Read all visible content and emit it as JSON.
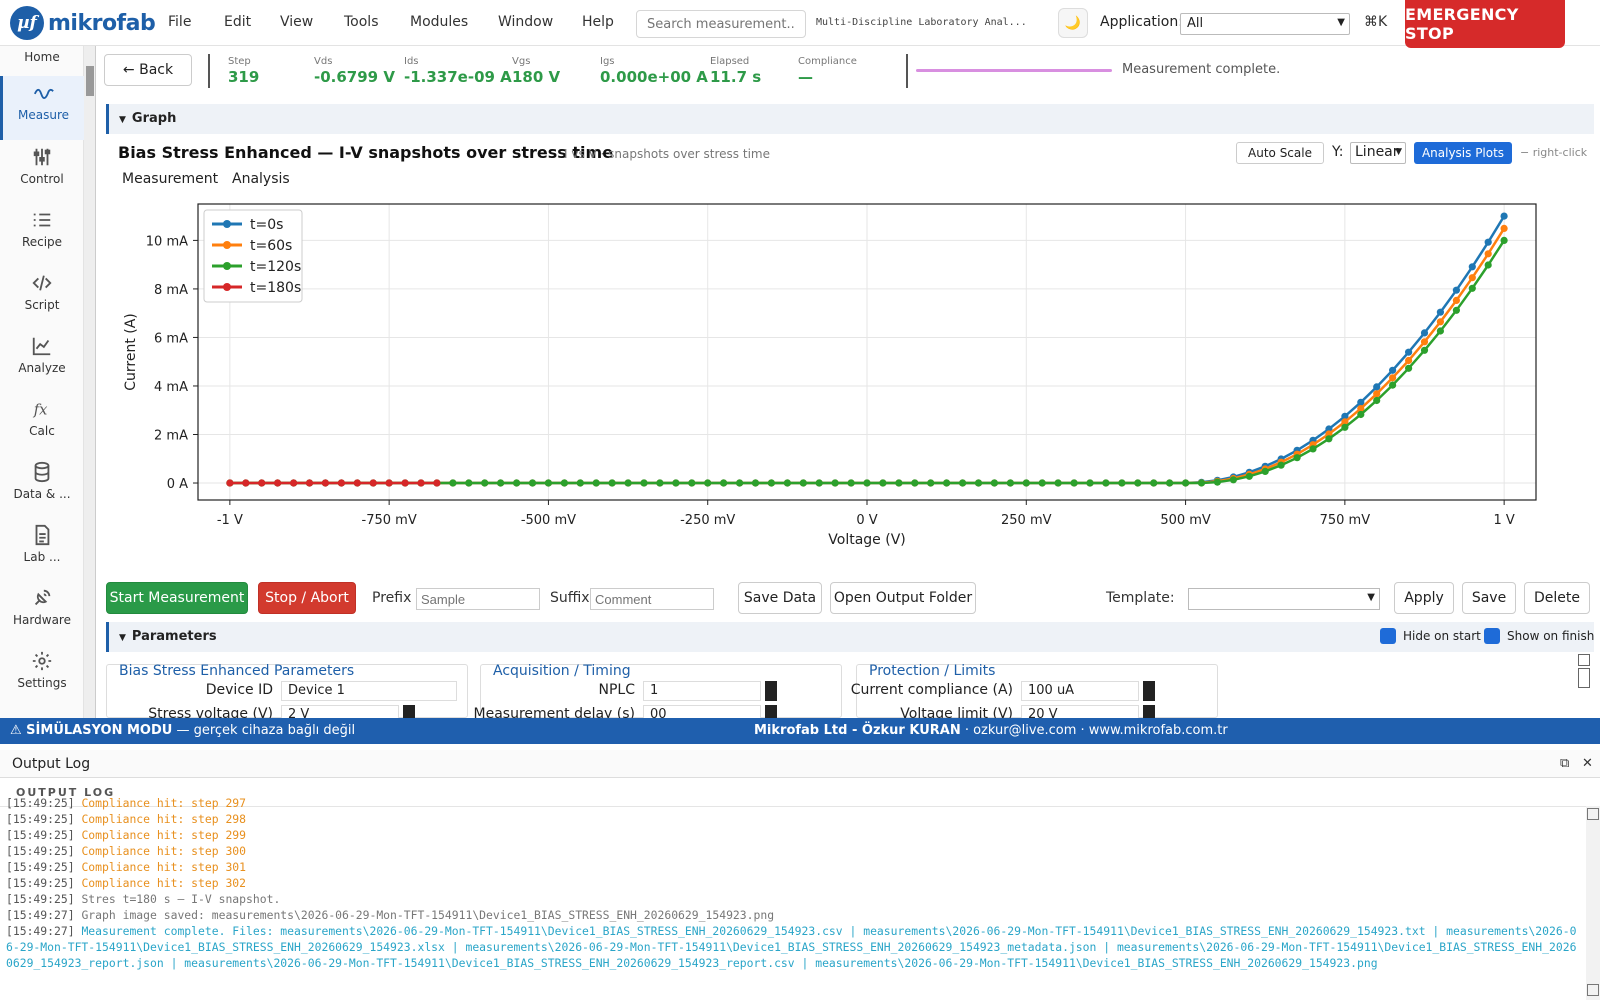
{
  "menubar": {
    "logo_mark": "µf",
    "logo_text": "mikrofab",
    "menus": [
      "File",
      "Edit",
      "View",
      "Tools",
      "Modules",
      "Window",
      "Help"
    ],
    "search_placeholder": "Search measurement...",
    "app_title": "Multi-Discipline Laboratory Anal...",
    "theme_icon": "moon-icon",
    "application_label": "Application:",
    "application_value": "All",
    "shortcut": "⌘K",
    "emergency_label": "EMERGENCY STOP"
  },
  "sidebar": {
    "items": [
      {
        "label": "Home",
        "icon": "home-icon"
      },
      {
        "label": "Measure",
        "icon": "wave-icon"
      },
      {
        "label": "Control",
        "icon": "sliders-icon"
      },
      {
        "label": "Recipe",
        "icon": "list-icon"
      },
      {
        "label": "Script",
        "icon": "code-icon"
      },
      {
        "label": "Analyze",
        "icon": "chart-icon"
      },
      {
        "label": "Calc",
        "icon": "function-icon"
      },
      {
        "label": "Data & ...",
        "icon": "database-icon"
      },
      {
        "label": "Lab ...",
        "icon": "document-icon"
      },
      {
        "label": "Hardware",
        "icon": "satellite-icon"
      },
      {
        "label": "Settings",
        "icon": "gear-icon"
      }
    ]
  },
  "status": {
    "back_label": "← Back",
    "stats": [
      {
        "label": "Step",
        "value": "319"
      },
      {
        "label": "Vds",
        "value": "-0.6799 V"
      },
      {
        "label": "Ids",
        "value": "-1.337e-09 A"
      },
      {
        "label": "Vgs",
        "value": "180 V"
      },
      {
        "label": "Igs",
        "value": "0.000e+00 A"
      },
      {
        "label": "Elapsed",
        "value": "11.7 s"
      },
      {
        "label": "Compliance",
        "value": "—"
      }
    ],
    "progress": 1.0,
    "message": "Measurement complete."
  },
  "graph": {
    "section_label": "Graph",
    "title": "Bias Stress Enhanced — I-V snapshots over stress time",
    "subtitle": "I vs V · snapshots over stress time",
    "auto_scale": "Auto Scale",
    "y_label": "Y:",
    "y_scale": "Linear",
    "analysis_plots": "Analysis Plots",
    "right_click": "− right-click",
    "tabs": [
      "Measurement",
      "Analysis"
    ]
  },
  "chart_data": {
    "type": "line",
    "xlabel": "Voltage (V)",
    "ylabel": "Current (A)",
    "xlim": [
      -1.05,
      1.05
    ],
    "ylim": [
      -0.0007,
      0.0115
    ],
    "x_ticks": [
      -1,
      -0.75,
      -0.5,
      -0.25,
      0,
      0.25,
      0.5,
      0.75,
      1
    ],
    "x_tick_labels": [
      "-1 V",
      "-750 mV",
      "-500 mV",
      "-250 mV",
      "0 V",
      "250 mV",
      "500 mV",
      "750 mV",
      "1 V"
    ],
    "y_ticks": [
      0,
      0.002,
      0.004,
      0.006,
      0.008,
      0.01
    ],
    "y_tick_labels": [
      "0 A",
      "2 mA",
      "4 mA",
      "6 mA",
      "8 mA",
      "10 mA"
    ],
    "grid": true,
    "legend_position": "top-left",
    "threshold_v": 0.5,
    "series": [
      {
        "name": "t=0s",
        "color": "#1f77b4",
        "x_range": [
          -1,
          1
        ],
        "vth": 0.5,
        "k": 0.044,
        "x_step": 0.025
      },
      {
        "name": "t=60s",
        "color": "#ff7f0e",
        "x_range": [
          -1,
          1
        ],
        "vth": 0.51,
        "k": 0.0437,
        "x_step": 0.025
      },
      {
        "name": "t=120s",
        "color": "#2ca02c",
        "x_range": [
          -1,
          1
        ],
        "vth": 0.52,
        "k": 0.0434,
        "x_step": 0.025
      },
      {
        "name": "t=180s",
        "color": "#d62728",
        "x_range": [
          -1,
          -0.675
        ],
        "vth": 0.53,
        "k": 0.0431,
        "x_step": 0.025
      }
    ]
  },
  "actions": {
    "start": "Start Measurement",
    "stop": "Stop / Abort",
    "prefix_label": "Prefix",
    "prefix_placeholder": "Sample",
    "suffix_label": "Suffix",
    "suffix_placeholder": "Comment",
    "save_data": "Save Data",
    "open_folder": "Open Output Folder",
    "template_label": "Template:",
    "apply": "Apply",
    "save": "Save",
    "delete": "Delete"
  },
  "parameters": {
    "section_label": "Parameters",
    "hide_on_start": "Hide on start",
    "show_on_finish": "Show on finish",
    "groups": [
      {
        "title": "Bias Stress Enhanced Parameters",
        "rows": [
          {
            "label": "Device ID",
            "value": "Device 1"
          },
          {
            "label": "Stress voltage (V)",
            "value": "2 V"
          }
        ]
      },
      {
        "title": "Acquisition / Timing",
        "rows": [
          {
            "label": "NPLC",
            "value": "1"
          },
          {
            "label": "Measurement delay (s)",
            "value": "00"
          }
        ]
      },
      {
        "title": "Protection / Limits",
        "rows": [
          {
            "label": "Current compliance (A)",
            "value": "100 uA"
          },
          {
            "label": "Voltage limit (V)",
            "value": "20 V"
          }
        ]
      }
    ]
  },
  "simbar": {
    "mode_bold": "⚠ SİMÜLASYON MODU",
    "mode_note": " — gerçek cihaza bağlı değil",
    "credit_bold": "Mikrofab Ltd - Özkur KURAN",
    "credit_rest": " · ozkur@live.com · www.mikrofab.com.tr"
  },
  "output_log": {
    "title": "Output Log",
    "sub_title": "OUTPUT LOG",
    "lines": [
      {
        "ts": "[15:49:25]",
        "msg": "Compliance hit: step 297",
        "kind": "warn"
      },
      {
        "ts": "[15:49:25]",
        "msg": "Compliance hit: step 298",
        "kind": "warn"
      },
      {
        "ts": "[15:49:25]",
        "msg": "Compliance hit: step 299",
        "kind": "warn"
      },
      {
        "ts": "[15:49:25]",
        "msg": "Compliance hit: step 300",
        "kind": "warn"
      },
      {
        "ts": "[15:49:25]",
        "msg": "Compliance hit: step 301",
        "kind": "warn"
      },
      {
        "ts": "[15:49:25]",
        "msg": "Compliance hit: step 302",
        "kind": "warn"
      },
      {
        "ts": "[15:49:25]",
        "msg": "Stres t=180 s — I-V snapshot.",
        "kind": "info"
      },
      {
        "ts": "[15:49:27]",
        "msg": "Graph image saved: measurements\\2026-06-29-Mon-TFT-154911\\Device1_BIAS_STRESS_ENH_20260629_154923.png",
        "kind": "info"
      },
      {
        "ts": "[15:49:27]",
        "msg": "Measurement complete. Files: measurements\\2026-06-29-Mon-TFT-154911\\Device1_BIAS_STRESS_ENH_20260629_154923.csv | measurements\\2026-06-29-Mon-TFT-154911\\Device1_BIAS_STRESS_ENH_20260629_154923.txt | measurements\\2026-06-29-Mon-TFT-154911\\Device1_BIAS_STRESS_ENH_20260629_154923.xlsx | measurements\\2026-06-29-Mon-TFT-154911\\Device1_BIAS_STRESS_ENH_20260629_154923_metadata.json | measurements\\2026-06-29-Mon-TFT-154911\\Device1_BIAS_STRESS_ENH_20260629_154923_report.json | measurements\\2026-06-29-Mon-TFT-154911\\Device1_BIAS_STRESS_ENH_20260629_154923_report.csv | measurements\\2026-06-29-Mon-TFT-154911\\Device1_BIAS_STRESS_ENH_20260629_154923.png",
        "kind": "ok"
      }
    ]
  }
}
